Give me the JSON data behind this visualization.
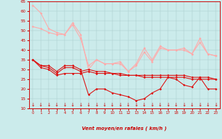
{
  "xlabel": "Vent moyen/en rafales ( km/h )",
  "x": [
    0,
    1,
    2,
    3,
    4,
    5,
    6,
    7,
    8,
    9,
    10,
    11,
    12,
    13,
    14,
    15,
    16,
    17,
    18,
    19,
    20,
    21,
    22,
    23
  ],
  "series": [
    {
      "color": "#ffaaaa",
      "lw": 0.8,
      "values": [
        63,
        59,
        51,
        49,
        48,
        54,
        48,
        30,
        35,
        33,
        33,
        34,
        29,
        33,
        41,
        35,
        42,
        40,
        40,
        41,
        38,
        46,
        38,
        37
      ]
    },
    {
      "color": "#ffaaaa",
      "lw": 0.8,
      "values": [
        52,
        51,
        49,
        48,
        48,
        53,
        46,
        32,
        35,
        33,
        33,
        33,
        29,
        32,
        39,
        34,
        41,
        40,
        40,
        40,
        38,
        44,
        38,
        37
      ]
    },
    {
      "color": "#dd1111",
      "lw": 0.8,
      "values": [
        35,
        32,
        32,
        29,
        32,
        32,
        30,
        17,
        20,
        20,
        18,
        17,
        16,
        14,
        15,
        18,
        20,
        26,
        25,
        22,
        21,
        26,
        20,
        20
      ]
    },
    {
      "color": "#dd1111",
      "lw": 0.8,
      "values": [
        35,
        32,
        31,
        28,
        31,
        31,
        29,
        30,
        29,
        29,
        28,
        28,
        27,
        27,
        27,
        27,
        27,
        27,
        27,
        27,
        26,
        26,
        26,
        25
      ]
    },
    {
      "color": "#dd1111",
      "lw": 0.8,
      "values": [
        35,
        31,
        30,
        27,
        28,
        28,
        28,
        29,
        28,
        28,
        28,
        27,
        27,
        27,
        26,
        26,
        26,
        26,
        26,
        26,
        25,
        25,
        25,
        25
      ]
    }
  ],
  "ylim": [
    10,
    65
  ],
  "yticks": [
    10,
    15,
    20,
    25,
    30,
    35,
    40,
    45,
    50,
    55,
    60,
    65
  ],
  "xticks": [
    0,
    1,
    2,
    3,
    4,
    5,
    6,
    7,
    8,
    9,
    10,
    11,
    12,
    13,
    14,
    15,
    16,
    17,
    18,
    19,
    20,
    21,
    22,
    23
  ],
  "bg_color": "#cbebeb",
  "grid_color": "#aacccc",
  "label_color": "#cc0000",
  "markersize": 1.8,
  "linewidth": 0.8
}
